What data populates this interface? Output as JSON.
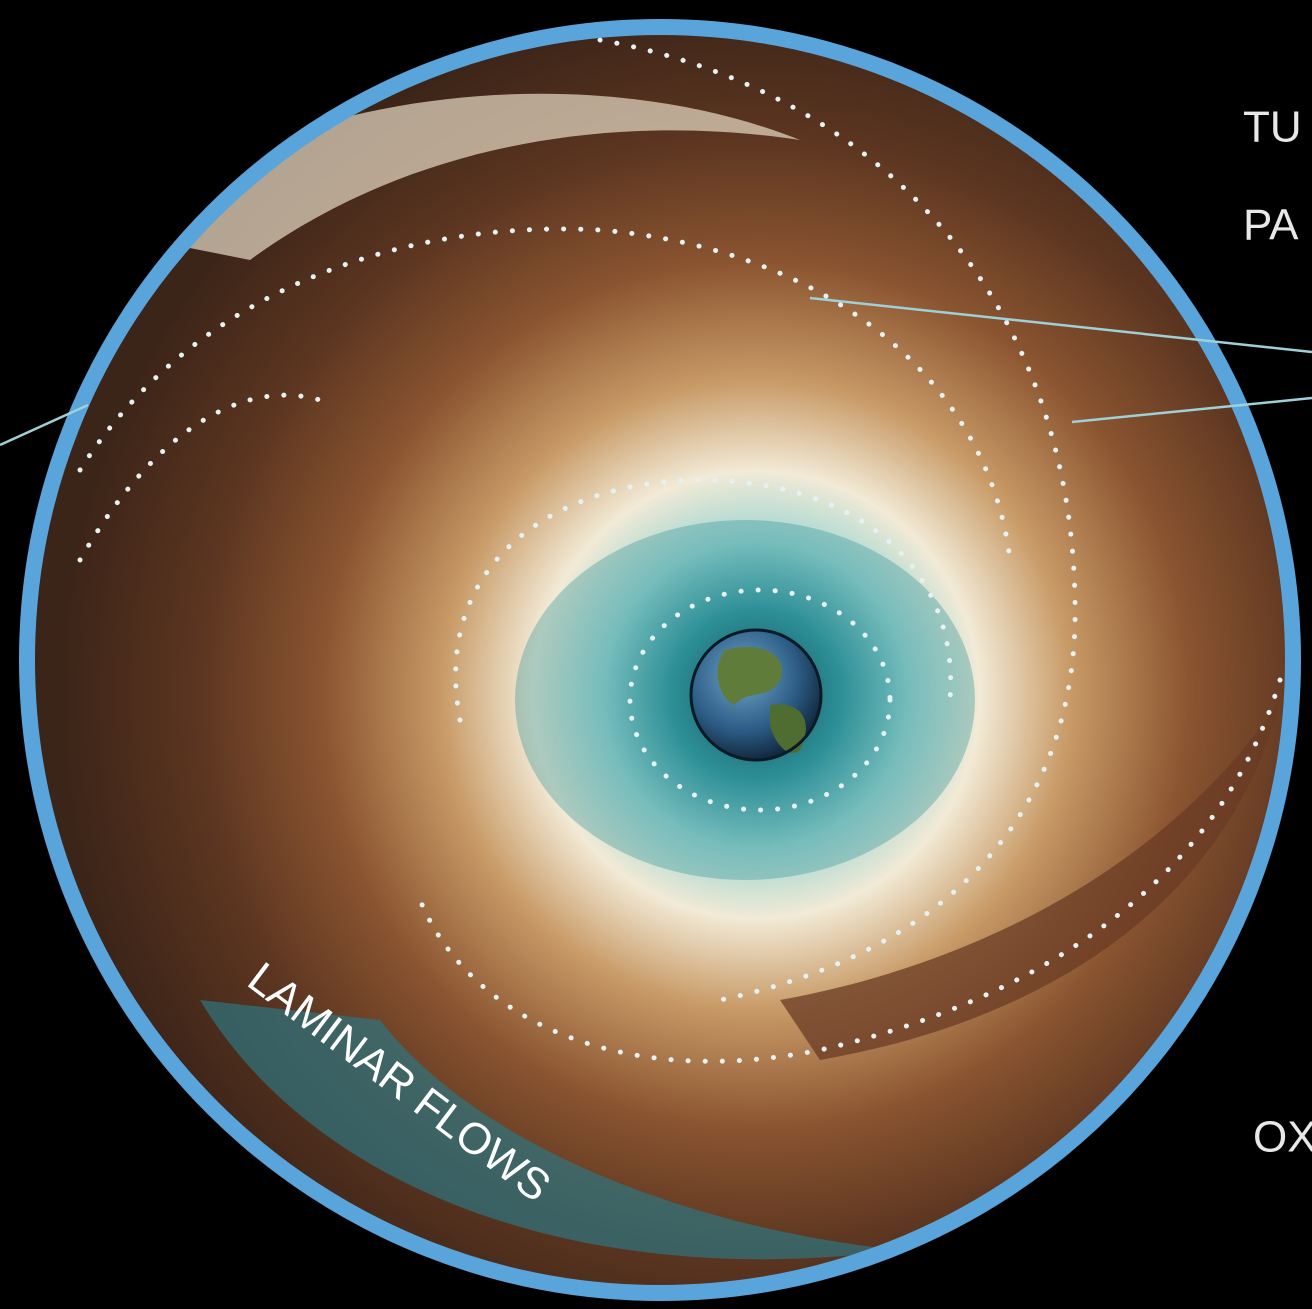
{
  "labels": {
    "top_right_line1": "TU",
    "top_right_line2": "PA",
    "bottom_right": "OX",
    "flow": "LAMINAR FLOWS"
  }
}
